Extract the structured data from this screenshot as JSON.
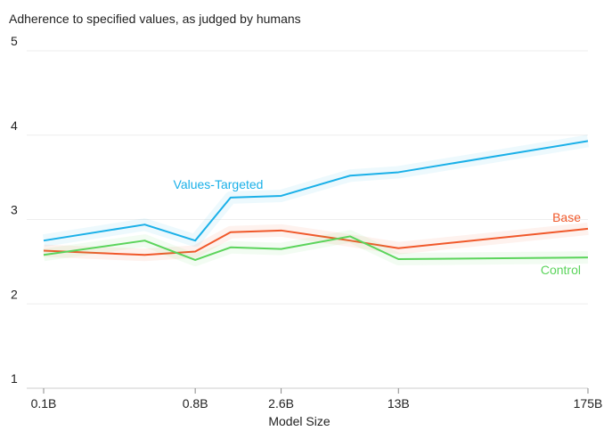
{
  "chart_data": {
    "type": "line",
    "title": "Adherence to specified values, as judged by humans",
    "x_label": "Model Size",
    "x": [
      0.1,
      0.4,
      0.8,
      1.3,
      2.6,
      6.7,
      13,
      175
    ],
    "xlim": [
      0.1,
      175
    ],
    "xscale": "log",
    "xticks": [
      {
        "value": 0.1,
        "label": "0.1B"
      },
      {
        "value": 0.8,
        "label": "0.8B"
      },
      {
        "value": 2.6,
        "label": "2.6B"
      },
      {
        "value": 13,
        "label": "13B"
      },
      {
        "value": 175,
        "label": "175B"
      }
    ],
    "ylim": [
      1,
      5
    ],
    "yticks": [
      1,
      2,
      3,
      4,
      5
    ],
    "grid": true,
    "series": [
      {
        "name": "Values-Targeted",
        "color": "#1ab0e8",
        "values": [
          2.75,
          2.94,
          2.75,
          3.26,
          3.28,
          3.52,
          3.56,
          3.93
        ]
      },
      {
        "name": "Base",
        "color": "#f0582a",
        "values": [
          2.63,
          2.58,
          2.62,
          2.85,
          2.87,
          2.75,
          2.66,
          2.89
        ]
      },
      {
        "name": "Control",
        "color": "#5bd45b",
        "values": [
          2.58,
          2.75,
          2.52,
          2.67,
          2.65,
          2.8,
          2.53,
          2.55
        ]
      }
    ]
  }
}
